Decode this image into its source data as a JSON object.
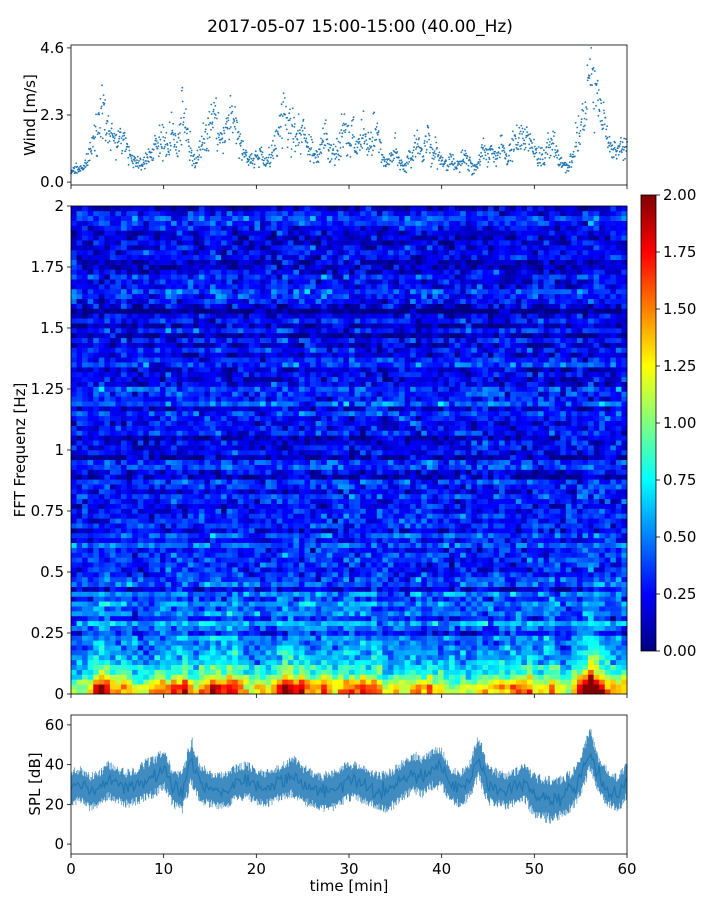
{
  "figure": {
    "title": "2017-05-07 15:00-15:00 (40.00_Hz)"
  },
  "chart_data": [
    {
      "id": "wind",
      "type": "scatter",
      "ylabel": "Wind [m/s]",
      "xlim": [
        0,
        60
      ],
      "ylim": [
        -0.1,
        4.7
      ],
      "yticks": [
        0.0,
        2.3,
        4.6
      ],
      "ytick_labels": [
        "0.0",
        "2.3",
        "4.6"
      ],
      "color": "#1f77b4",
      "x": [
        0,
        0.5,
        1,
        1.5,
        2,
        2.5,
        3,
        3.5,
        4,
        4.5,
        5,
        5.5,
        6,
        6.5,
        7,
        7.5,
        8,
        8.5,
        9,
        9.5,
        10,
        10.5,
        11,
        11.5,
        12,
        12.5,
        13,
        13.5,
        14,
        14.5,
        15,
        15.5,
        16,
        16.5,
        17,
        17.5,
        18,
        18.5,
        19,
        19.5,
        20,
        20.5,
        21,
        21.5,
        22,
        22.5,
        23,
        23.5,
        24,
        24.5,
        25,
        25.5,
        26,
        26.5,
        27,
        27.5,
        28,
        28.5,
        29,
        29.5,
        30,
        30.5,
        31,
        31.5,
        32,
        32.5,
        33,
        33.5,
        34,
        34.5,
        35,
        35.5,
        36,
        36.5,
        37,
        37.5,
        38,
        38.5,
        39,
        39.5,
        40,
        40.5,
        41,
        41.5,
        42,
        42.5,
        43,
        43.5,
        44,
        44.5,
        45,
        45.5,
        46,
        46.5,
        47,
        47.5,
        48,
        48.5,
        49,
        49.5,
        50,
        50.5,
        51,
        51.5,
        52,
        52.5,
        53,
        53.5,
        54,
        54.5,
        55,
        55.5,
        56,
        56.5,
        57,
        57.5,
        58,
        58.5,
        59,
        59.5,
        60
      ],
      "y": [
        0.3,
        0.5,
        0.4,
        0.6,
        0.9,
        1.4,
        2.1,
        2.6,
        1.8,
        1.5,
        1.3,
        1.6,
        1.2,
        0.8,
        0.7,
        0.6,
        0.7,
        0.9,
        1.2,
        1.5,
        1.4,
        1.2,
        1.8,
        1.1,
        2.4,
        1.7,
        0.9,
        0.7,
        1.2,
        1.5,
        1.9,
        2.2,
        1.7,
        1.4,
        2.0,
        2.3,
        1.6,
        1.0,
        0.9,
        0.7,
        0.8,
        1.0,
        0.6,
        0.9,
        1.2,
        1.7,
        2.4,
        2.1,
        1.8,
        1.5,
        1.9,
        1.4,
        1.1,
        0.8,
        1.3,
        1.8,
        1.2,
        0.9,
        1.4,
        1.7,
        1.3,
        1.6,
        1.2,
        1.8,
        1.1,
        1.5,
        1.9,
        1.0,
        0.6,
        0.8,
        1.2,
        0.7,
        0.5,
        0.9,
        1.1,
        1.4,
        0.8,
        1.7,
        0.9,
        1.2,
        0.7,
        0.6,
        0.8,
        0.5,
        0.7,
        0.9,
        0.6,
        0.4,
        0.7,
        1.0,
        0.8,
        1.1,
        0.9,
        1.3,
        0.8,
        1.2,
        1.4,
        1.6,
        1.3,
        1.5,
        1.1,
        0.9,
        0.8,
        1.2,
        1.6,
        0.9,
        0.6,
        0.5,
        0.7,
        1.4,
        1.8,
        2.4,
        3.8,
        3.0,
        2.6,
        2.0,
        1.4,
        1.1,
        1.0,
        1.2,
        1.1
      ]
    },
    {
      "id": "spectrogram",
      "type": "heatmap",
      "ylabel": "FFT Frequenz [Hz]",
      "xlim": [
        0,
        60
      ],
      "ylim": [
        0,
        2
      ],
      "yticks": [
        0,
        0.25,
        0.5,
        0.75,
        1,
        1.25,
        1.5,
        1.75,
        2
      ],
      "ytick_labels": [
        "0",
        "0.25",
        "0.5",
        "0.75",
        "1",
        "1.25",
        "1.5",
        "1.75",
        "2"
      ],
      "colormap": "jet",
      "colorbar": {
        "range": [
          0,
          2
        ],
        "ticks": [
          0,
          0.25,
          0.5,
          0.75,
          1,
          1.25,
          1.5,
          1.75,
          2
        ],
        "tick_labels": [
          "0.00",
          "0.25",
          "0.50",
          "0.75",
          "1.00",
          "1.25",
          "1.50",
          "1.75",
          "2.00"
        ]
      },
      "frequency_profile_hz": [
        0,
        0.05,
        0.1,
        0.2,
        0.3,
        0.5,
        0.75,
        1.0,
        1.5,
        2.0
      ],
      "frequency_profile_level": [
        1.7,
        1.15,
        0.7,
        0.55,
        0.45,
        0.36,
        0.28,
        0.25,
        0.22,
        0.2
      ]
    },
    {
      "id": "spl",
      "type": "line",
      "ylabel": "SPL [dB]",
      "xlabel": "time [min]",
      "xlim": [
        0,
        60
      ],
      "ylim": [
        -5,
        65
      ],
      "yticks": [
        0,
        20,
        40,
        60
      ],
      "ytick_labels": [
        "0",
        "20",
        "40",
        "60"
      ],
      "xticks": [
        0,
        10,
        20,
        30,
        40,
        50,
        60
      ],
      "xtick_labels": [
        "0",
        "10",
        "20",
        "30",
        "40",
        "50",
        "60"
      ],
      "color": "#1f77b4",
      "x": [
        0,
        1,
        2,
        3,
        4,
        5,
        6,
        7,
        8,
        9,
        10,
        11,
        12,
        13,
        14,
        15,
        16,
        17,
        18,
        19,
        20,
        21,
        22,
        23,
        24,
        25,
        26,
        27,
        28,
        29,
        30,
        31,
        32,
        33,
        34,
        35,
        36,
        37,
        38,
        39,
        40,
        41,
        42,
        43,
        44,
        45,
        46,
        47,
        48,
        49,
        50,
        51,
        52,
        53,
        54,
        55,
        56,
        57,
        58,
        59,
        60
      ],
      "y": [
        28,
        30,
        26,
        28,
        32,
        30,
        28,
        29,
        32,
        34,
        38,
        28,
        26,
        42,
        30,
        28,
        27,
        28,
        31,
        32,
        29,
        28,
        30,
        32,
        34,
        30,
        28,
        26,
        27,
        29,
        32,
        31,
        29,
        27,
        26,
        29,
        33,
        36,
        34,
        38,
        38,
        30,
        28,
        32,
        44,
        30,
        28,
        27,
        29,
        31,
        24,
        23,
        22,
        24,
        27,
        34,
        48,
        34,
        28,
        25,
        32
      ],
      "band": [
        9,
        9,
        9,
        9,
        9,
        9,
        9,
        9,
        10,
        10,
        10,
        9,
        10,
        12,
        10,
        9,
        9,
        9,
        9,
        9,
        9,
        9,
        9,
        9,
        10,
        10,
        9,
        9,
        10,
        10,
        10,
        9,
        9,
        9,
        10,
        10,
        10,
        10,
        10,
        10,
        10,
        9,
        9,
        9,
        11,
        10,
        9,
        9,
        9,
        10,
        11,
        11,
        11,
        10,
        10,
        10,
        11,
        10,
        9,
        9,
        9
      ]
    }
  ]
}
